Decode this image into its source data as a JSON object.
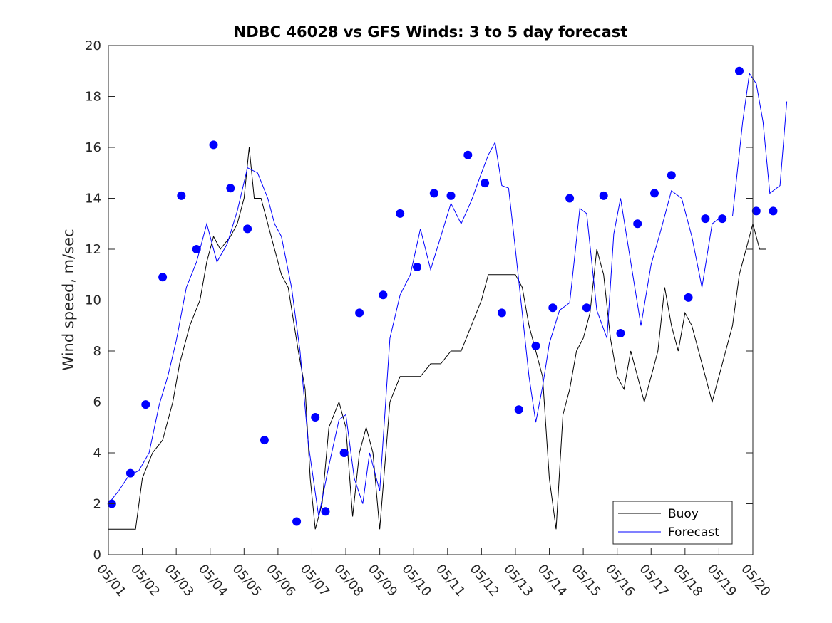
{
  "chart_data": {
    "type": "line",
    "title": "NDBC 46028 vs GFS Winds: 3 to 5 day forecast",
    "xlabel": "",
    "ylabel": "Wind speed, m/sec",
    "xlim": [
      "05/01",
      "05/20"
    ],
    "ylim": [
      0,
      20
    ],
    "x_ticks": [
      "05/01",
      "05/02",
      "05/03",
      "05/04",
      "05/05",
      "05/06",
      "05/07",
      "05/08",
      "05/09",
      "05/10",
      "05/11",
      "05/12",
      "05/13",
      "05/14",
      "05/15",
      "05/16",
      "05/17",
      "05/18",
      "05/19",
      "05/20"
    ],
    "y_ticks": [
      "0",
      "2",
      "4",
      "6",
      "8",
      "10",
      "12",
      "14",
      "16",
      "18",
      "20"
    ],
    "grid": false,
    "legend_position": "bottom-right",
    "legend": [
      "Buoy",
      "Forecast"
    ],
    "colors": {
      "buoy": "#000000",
      "forecast": "#0000ff"
    },
    "series": [
      {
        "name": "Buoy",
        "x_day": [
          0,
          0.2,
          0.5,
          0.8,
          1.0,
          1.3,
          1.6,
          1.9,
          2.1,
          2.4,
          2.7,
          2.9,
          3.1,
          3.3,
          3.6,
          3.8,
          4.0,
          4.15,
          4.3,
          4.5,
          4.7,
          4.9,
          5.1,
          5.3,
          5.6,
          5.8,
          5.95,
          6.1,
          6.3,
          6.5,
          6.8,
          7.0,
          7.2,
          7.4,
          7.6,
          7.8,
          8.0,
          8.3,
          8.6,
          8.9,
          9.2,
          9.5,
          9.8,
          10.1,
          10.4,
          10.7,
          11.0,
          11.2,
          11.4,
          11.6,
          11.8,
          12.0,
          12.2,
          12.4,
          12.6,
          12.8,
          13.0,
          13.2,
          13.4,
          13.6,
          13.8,
          14.0,
          14.2,
          14.4,
          14.6,
          14.8,
          15.0,
          15.2,
          15.4,
          15.6,
          15.8,
          16.0,
          16.2,
          16.4,
          16.6,
          16.8,
          17.0,
          17.2,
          17.4,
          17.6,
          17.8,
          18.0,
          18.2,
          18.4,
          18.6,
          18.8,
          19.0,
          19.2,
          19.4
        ],
        "values": [
          1,
          1,
          1,
          1,
          3,
          4,
          4.5,
          6,
          7.5,
          9,
          10,
          11.5,
          12.5,
          12,
          12.5,
          13,
          14,
          16,
          14,
          14,
          13,
          12,
          11,
          10.5,
          8,
          6.5,
          3,
          1,
          2,
          5,
          6,
          5,
          1.5,
          4,
          5,
          4,
          1,
          6,
          7,
          7,
          7,
          7.5,
          7.5,
          8,
          8,
          9,
          10,
          11,
          11,
          11,
          11,
          11,
          10.5,
          9,
          8,
          7,
          3,
          1,
          5.5,
          6.5,
          8,
          8.5,
          9.5,
          12,
          11,
          8.5,
          7,
          6.5,
          8,
          7,
          6,
          7,
          8,
          10.5,
          9,
          8,
          9.5,
          9,
          8,
          7,
          6,
          7,
          8,
          9,
          11,
          12,
          13,
          12,
          12
        ]
      },
      {
        "name": "Forecast",
        "x_day": [
          0,
          0.3,
          0.6,
          0.9,
          1.2,
          1.5,
          1.75,
          2.0,
          2.3,
          2.6,
          2.9,
          3.2,
          3.5,
          3.8,
          4.1,
          4.4,
          4.7,
          4.9,
          5.1,
          5.4,
          5.65,
          5.9,
          6.2,
          6.5,
          6.8,
          7.0,
          7.25,
          7.5,
          7.7,
          8.0,
          8.3,
          8.6,
          8.9,
          9.2,
          9.5,
          9.8,
          10.1,
          10.4,
          10.7,
          11.0,
          11.2,
          11.4,
          11.6,
          11.8,
          12.0,
          12.2,
          12.4,
          12.6,
          12.8,
          13.0,
          13.3,
          13.6,
          13.9,
          14.1,
          14.4,
          14.7,
          14.9,
          15.1,
          15.4,
          15.7,
          16.0,
          16.3,
          16.6,
          16.9,
          17.2,
          17.5,
          17.8,
          18.1,
          18.4,
          18.7,
          18.9,
          19.1,
          19.3,
          19.5,
          19.8,
          20.0
        ],
        "values": [
          2,
          2.5,
          3.1,
          3.3,
          4,
          5.9,
          7,
          8.4,
          10.5,
          11.5,
          13,
          11.5,
          12.2,
          13.5,
          15.2,
          15,
          14,
          13,
          12.5,
          10.5,
          8,
          4.3,
          1.5,
          3.5,
          5.3,
          5.5,
          3,
          2,
          4,
          2.5,
          8.5,
          10.2,
          11,
          12.8,
          11.2,
          12.5,
          13.8,
          13,
          13.9,
          15,
          15.7,
          16.2,
          14.5,
          14.4,
          12,
          9.5,
          7,
          5.2,
          6.6,
          8.3,
          9.6,
          9.9,
          13.6,
          13.4,
          9.6,
          8.5,
          12.6,
          14,
          11.5,
          9,
          11.4,
          12.8,
          14.3,
          14,
          12.5,
          10.5,
          13,
          13.3,
          13.3,
          17,
          18.9,
          18.5,
          17,
          14.2,
          14.5,
          17.8
        ]
      }
    ],
    "markers": {
      "x_day": [
        0.1,
        0.65,
        1.1,
        1.6,
        2.15,
        2.6,
        3.1,
        3.6,
        4.1,
        4.6,
        5.55,
        6.1,
        6.4,
        6.95,
        7.4,
        8.1,
        8.6,
        9.1,
        9.6,
        10.1,
        10.6,
        11.1,
        11.6,
        12.1,
        12.6,
        13.1,
        13.6,
        14.1,
        14.6,
        15.1,
        15.6,
        16.1,
        16.6,
        17.1,
        17.6,
        18.1,
        18.6,
        19.1,
        19.6
      ],
      "values": [
        2,
        3.2,
        5.9,
        10.9,
        14.1,
        12,
        16.1,
        14.4,
        12.8,
        4.5,
        1.3,
        5.4,
        1.7,
        4,
        9.5,
        10.2,
        13.4,
        11.3,
        14.2,
        14.1,
        15.7,
        14.6,
        9.5,
        5.7,
        8.2,
        9.7,
        14,
        9.7,
        14.1,
        8.7,
        13,
        14.2,
        14.9,
        10.1,
        13.2,
        13.2,
        19,
        13.5,
        13.5
      ]
    }
  }
}
